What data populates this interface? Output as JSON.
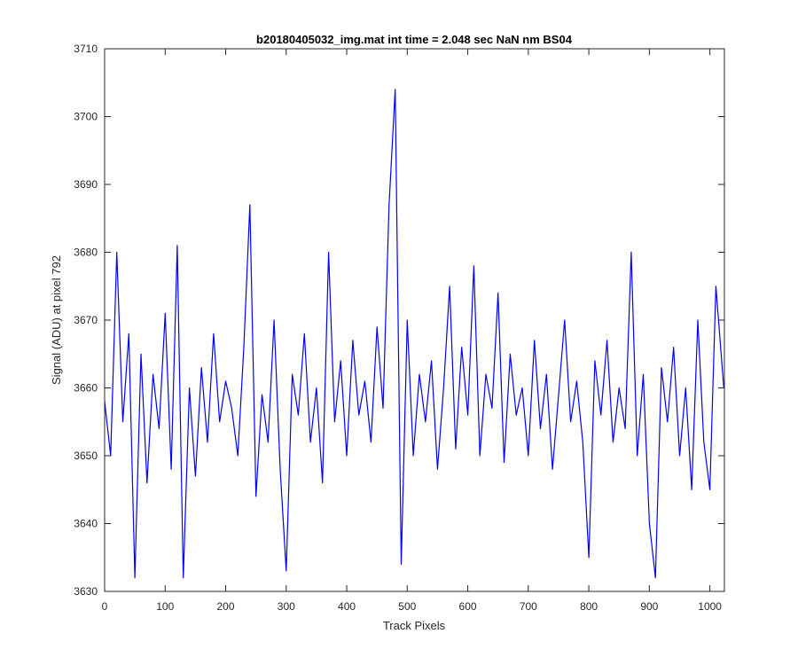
{
  "chart_data": {
    "type": "line",
    "title": "b20180405032_img.mat int time = 2.048 sec  NaN nm BS04",
    "xlabel": "Track Pixels",
    "ylabel": "Signal (ADU) at pixel 792",
    "xlim": [
      0,
      1024
    ],
    "ylim": [
      3630,
      3710
    ],
    "xticks": [
      0,
      100,
      200,
      300,
      400,
      500,
      600,
      700,
      800,
      900,
      1000
    ],
    "yticks": [
      3630,
      3640,
      3650,
      3660,
      3670,
      3680,
      3690,
      3700,
      3710
    ],
    "grid": false,
    "legend": "none",
    "series": [
      {
        "color": "#0000ff",
        "x": [
          0,
          10,
          20,
          30,
          40,
          50,
          60,
          70,
          80,
          90,
          100,
          110,
          120,
          130,
          140,
          150,
          160,
          170,
          180,
          190,
          200,
          210,
          220,
          230,
          240,
          250,
          260,
          270,
          280,
          290,
          300,
          310,
          320,
          330,
          340,
          350,
          360,
          370,
          380,
          390,
          400,
          410,
          420,
          430,
          440,
          450,
          460,
          470,
          480,
          490,
          500,
          510,
          520,
          530,
          540,
          550,
          560,
          570,
          580,
          590,
          600,
          610,
          620,
          630,
          640,
          650,
          660,
          670,
          680,
          690,
          700,
          710,
          720,
          730,
          740,
          750,
          760,
          770,
          780,
          790,
          800,
          810,
          820,
          830,
          840,
          850,
          860,
          870,
          880,
          890,
          900,
          910,
          920,
          930,
          940,
          950,
          960,
          970,
          980,
          990,
          1000,
          1010,
          1023
        ],
        "y": [
          3658,
          3650,
          3680,
          3655,
          3668,
          3632,
          3665,
          3646,
          3662,
          3654,
          3671,
          3648,
          3681,
          3632,
          3660,
          3647,
          3663,
          3652,
          3668,
          3655,
          3661,
          3657,
          3650,
          3666,
          3687,
          3644,
          3659,
          3652,
          3670,
          3648,
          3633,
          3662,
          3656,
          3668,
          3652,
          3660,
          3646,
          3680,
          3655,
          3664,
          3650,
          3667,
          3656,
          3661,
          3652,
          3669,
          3657,
          3687,
          3704,
          3634,
          3670,
          3650,
          3662,
          3655,
          3664,
          3648,
          3660,
          3675,
          3651,
          3666,
          3656,
          3678,
          3650,
          3662,
          3657,
          3674,
          3649,
          3665,
          3656,
          3660,
          3650,
          3667,
          3654,
          3662,
          3648,
          3659,
          3670,
          3655,
          3661,
          3652,
          3635,
          3664,
          3656,
          3667,
          3652,
          3660,
          3654,
          3680,
          3650,
          3662,
          3640,
          3632,
          3663,
          3655,
          3666,
          3650,
          3660,
          3645,
          3670,
          3652,
          3645,
          3675,
          3660
        ]
      }
    ]
  }
}
